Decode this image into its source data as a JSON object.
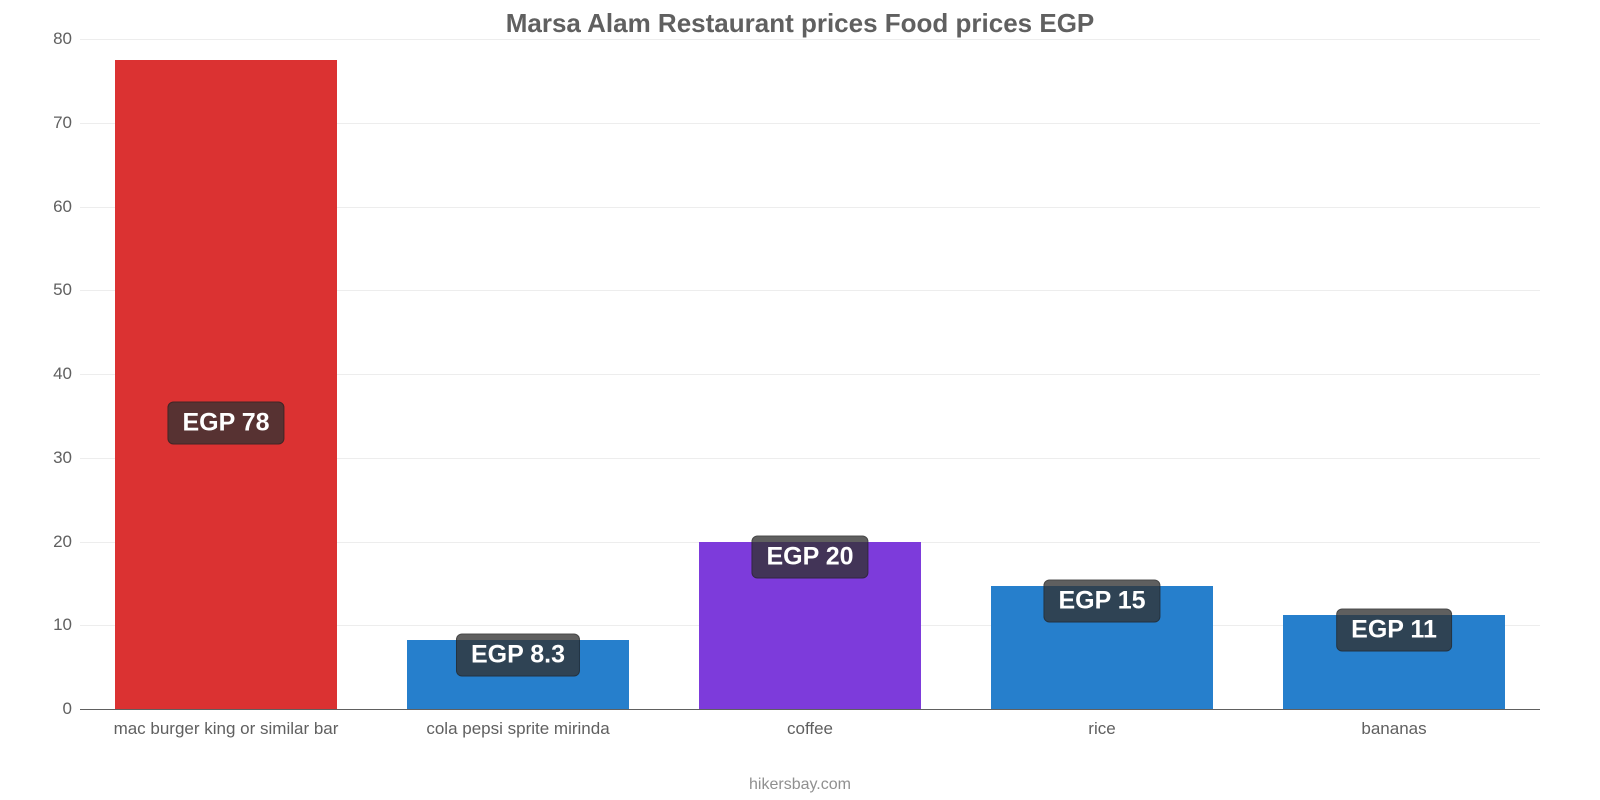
{
  "chart": {
    "type": "bar",
    "title": "Marsa Alam Restaurant prices Food prices EGP",
    "title_fontsize": 26,
    "title_color": "#606060",
    "background_color": "#ffffff",
    "axis_color": "#606060",
    "axis_fontsize": 17,
    "grid_color": "#ededed",
    "ylim": [
      0,
      80
    ],
    "ytick_step": 10,
    "yticks": [
      0,
      10,
      20,
      30,
      40,
      50,
      60,
      70,
      80
    ],
    "bar_width_pct": 76,
    "value_badge": {
      "bg": "rgba(50,50,50,0.78)",
      "color": "#ffffff",
      "fontsize": 25,
      "radius": 6
    },
    "categories": [
      "mac burger king or similar bar",
      "cola pepsi sprite mirinda",
      "coffee",
      "rice",
      "bananas"
    ],
    "values": [
      77.5,
      8.3,
      20,
      14.7,
      11.2
    ],
    "value_labels": [
      "EGP 78",
      "EGP 8.3",
      "EGP 20",
      "EGP 15",
      "EGP 11"
    ],
    "bar_colors": [
      "#db3232",
      "#267fcc",
      "#7d3bdb",
      "#267fcc",
      "#267fcc"
    ],
    "credit": "hikersbay.com",
    "credit_color": "#909090",
    "credit_fontsize": 16
  }
}
